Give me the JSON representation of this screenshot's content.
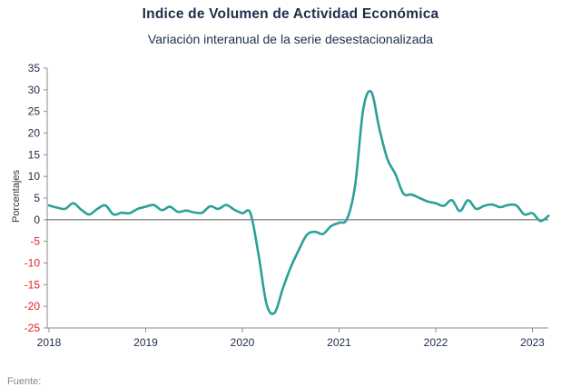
{
  "header": {
    "title": "Indice de Volumen de  Actividad Económica",
    "subtitle": "Variación interanual de la serie desestacionalizada"
  },
  "footer": {
    "source": "Fuente:"
  },
  "colors": {
    "line": "#2aa198",
    "negative_tick": "#e8202a",
    "positive_tick": "#1f2d4a",
    "axis": "#8c8c8c"
  },
  "chart_data": {
    "type": "line",
    "title": "Indice de Volumen de  Actividad Económica",
    "subtitle": "Variación interanual de la serie desestacionalizada",
    "ylabel": "Porcentajes",
    "xlabel": "",
    "ylim": [
      -25,
      35
    ],
    "yticks": [
      35,
      30,
      25,
      20,
      15,
      10,
      5,
      0,
      -5,
      -10,
      -15,
      -20,
      -25
    ],
    "xticks": [
      "2018",
      "2019",
      "2020",
      "2021",
      "2022",
      "2023"
    ],
    "xlim": [
      "2018-01",
      "2023-03"
    ],
    "grid": false,
    "zero_line": true,
    "series": [
      {
        "color": "#2aa198",
        "x": [
          "2018-01",
          "2018-02",
          "2018-03",
          "2018-04",
          "2018-05",
          "2018-06",
          "2018-07",
          "2018-08",
          "2018-09",
          "2018-10",
          "2018-11",
          "2018-12",
          "2019-01",
          "2019-02",
          "2019-03",
          "2019-04",
          "2019-05",
          "2019-06",
          "2019-07",
          "2019-08",
          "2019-09",
          "2019-10",
          "2019-11",
          "2019-12",
          "2020-01",
          "2020-02",
          "2020-03",
          "2020-04",
          "2020-05",
          "2020-06",
          "2020-07",
          "2020-08",
          "2020-09",
          "2020-10",
          "2020-11",
          "2020-12",
          "2021-01",
          "2021-02",
          "2021-03",
          "2021-04",
          "2021-05",
          "2021-06",
          "2021-07",
          "2021-08",
          "2021-09",
          "2021-10",
          "2021-11",
          "2021-12",
          "2022-01",
          "2022-02",
          "2022-03",
          "2022-04",
          "2022-05",
          "2022-06",
          "2022-07",
          "2022-08",
          "2022-09",
          "2022-10",
          "2022-11",
          "2022-12",
          "2023-01",
          "2023-02",
          "2023-03"
        ],
        "values": [
          3.3,
          2.8,
          2.5,
          3.8,
          2.3,
          1.2,
          2.5,
          3.3,
          1.2,
          1.6,
          1.5,
          2.5,
          3.0,
          3.4,
          2.2,
          3.0,
          1.8,
          2.1,
          1.7,
          1.6,
          3.1,
          2.5,
          3.4,
          2.3,
          1.5,
          1.5,
          -8.0,
          -19.5,
          -21.5,
          -16.0,
          -11.0,
          -7.0,
          -3.5,
          -2.8,
          -3.3,
          -1.5,
          -0.7,
          0.2,
          8.0,
          25.5,
          29.5,
          21.0,
          14.0,
          10.5,
          6.0,
          5.8,
          5.0,
          4.2,
          3.8,
          3.2,
          4.5,
          2.0,
          4.5,
          2.5,
          3.2,
          3.5,
          2.9,
          3.4,
          3.3,
          1.2,
          1.5,
          -0.3,
          0.9
        ]
      }
    ]
  }
}
